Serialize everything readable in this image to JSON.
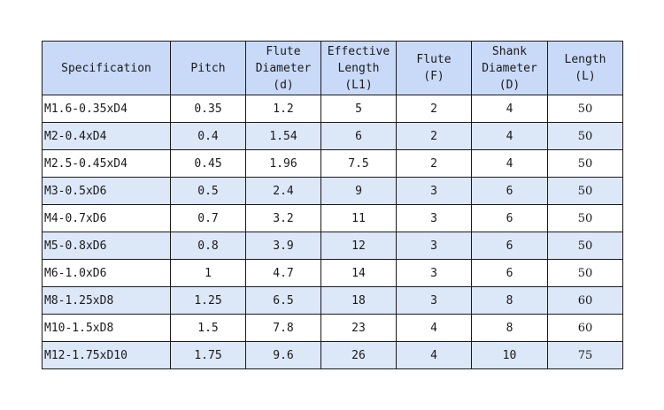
{
  "table": {
    "headers": [
      {
        "lines": [
          "Specification"
        ]
      },
      {
        "lines": [
          "Pitch"
        ]
      },
      {
        "lines": [
          "Flute",
          "Diameter",
          "(d)"
        ]
      },
      {
        "lines": [
          "Effective",
          "Length",
          "(L1)"
        ]
      },
      {
        "lines": [
          "Flute",
          "(F)"
        ]
      },
      {
        "lines": [
          "Shank",
          "Diameter",
          "(D)"
        ]
      },
      {
        "lines": [
          "Length",
          "(L)"
        ]
      }
    ],
    "rows": [
      [
        "M1.6-0.35xD4",
        "0.35",
        "1.2",
        "5",
        "2",
        "4",
        "50"
      ],
      [
        "M2-0.4xD4",
        "0.4",
        "1.54",
        "6",
        "2",
        "4",
        "50"
      ],
      [
        "M2.5-0.45xD4",
        "0.45",
        "1.96",
        "7.5",
        "2",
        "4",
        "50"
      ],
      [
        "M3-0.5xD6",
        "0.5",
        "2.4",
        "9",
        "3",
        "6",
        "50"
      ],
      [
        "M4-0.7xD6",
        "0.7",
        "3.2",
        "11",
        "3",
        "6",
        "50"
      ],
      [
        "M5-0.8xD6",
        "0.8",
        "3.9",
        "12",
        "3",
        "6",
        "50"
      ],
      [
        "M6-1.0xD6",
        "1",
        "4.7",
        "14",
        "3",
        "6",
        "50"
      ],
      [
        "M8-1.25xD8",
        "1.25",
        "6.5",
        "18",
        "3",
        "8",
        "60"
      ],
      [
        "M10-1.5xD8",
        "1.5",
        "7.8",
        "23",
        "4",
        "8",
        "60"
      ],
      [
        "M12-1.75xD10",
        "1.75",
        "9.6",
        "26",
        "4",
        "10",
        "75"
      ]
    ]
  },
  "colors": {
    "header_bg": "#c9daf8",
    "alt_row_bg": "#dce7f8",
    "border": "#1a1a1a"
  }
}
